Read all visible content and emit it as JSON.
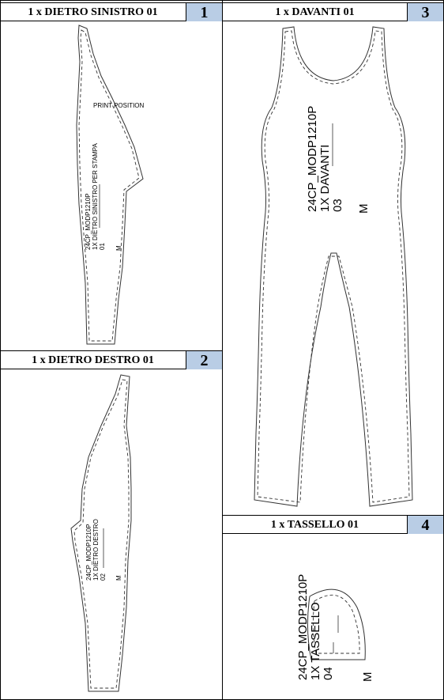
{
  "panels": [
    {
      "number": "1",
      "title": "1 x DIETRO SINISTRO 01",
      "piece_label": {
        "model": "24CP_MODP1210P",
        "name": "1X DIETRO SINISTRO PER STAMPA",
        "index": "01",
        "size": "M"
      },
      "note": "PRINT POSITION"
    },
    {
      "number": "2",
      "title": "1 x DIETRO DESTRO 01",
      "piece_label": {
        "model": "24CP_MODP1210P",
        "name": "1X DIETRO DESTRO",
        "index": "02",
        "size": "M"
      }
    },
    {
      "number": "3",
      "title": "1 x DAVANTI 01",
      "piece_label": {
        "model": "24CP_MODP1210P",
        "name": "1X DAVANTI",
        "index": "03",
        "size": "M"
      }
    },
    {
      "number": "4",
      "title": "1 x TASSELLO 01",
      "piece_label": {
        "model": "24CP_MODP1210P",
        "name": "1X TASSELLO",
        "index": "04",
        "size": "M"
      }
    }
  ],
  "colors": {
    "badge": "#b9cde5",
    "line": "#333333"
  }
}
